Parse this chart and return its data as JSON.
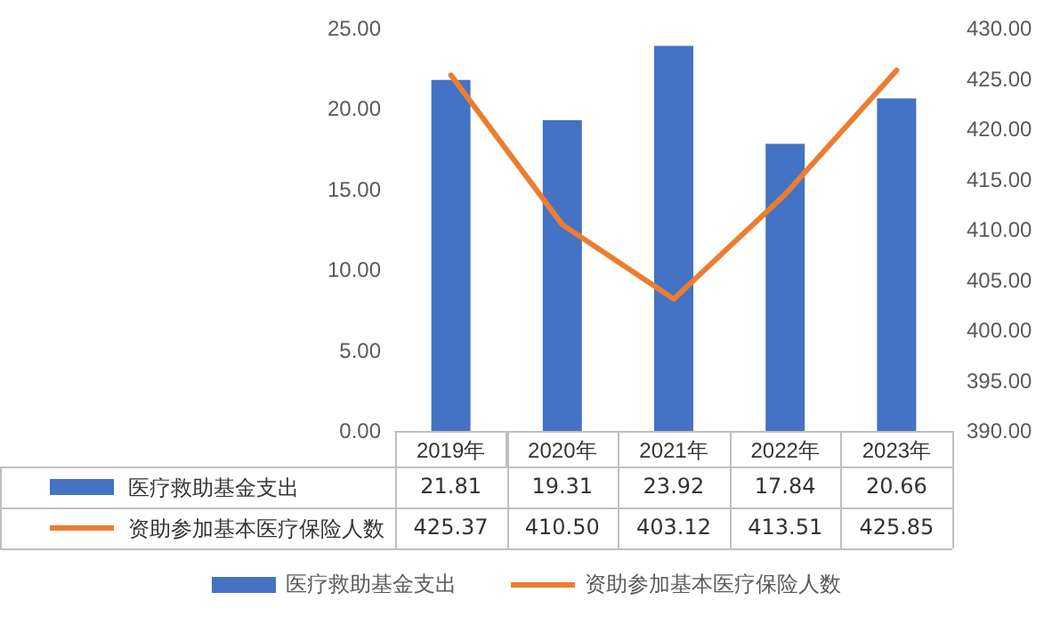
{
  "chart_data": {
    "type": "bar",
    "categories": [
      "2019年",
      "2020年",
      "2021年",
      "2022年",
      "2023年"
    ],
    "series": [
      {
        "name": "医疗救助基金支出",
        "color": "#4472c4",
        "values": [
          21.81,
          19.31,
          23.92,
          17.84,
          20.66
        ],
        "value_labels": [
          "21.81",
          "19.31",
          "23.92",
          "17.84",
          "20.66"
        ]
      },
      {
        "name": "资助参加基本医疗保险人数",
        "type": "line",
        "axis": "y2",
        "color": "#ed7d31",
        "values": [
          425.37,
          410.5,
          403.12,
          413.51,
          425.85
        ],
        "value_labels": [
          "425.37",
          "410.50",
          "403.12",
          "413.51",
          "425.85"
        ]
      }
    ],
    "ylim": [
      0,
      25
    ],
    "yticks": [
      {
        "value": 0,
        "label": "0.00"
      },
      {
        "value": 5,
        "label": "5.00"
      },
      {
        "value": 10,
        "label": "10.00"
      },
      {
        "value": 15,
        "label": "15.00"
      },
      {
        "value": 20,
        "label": "20.00"
      },
      {
        "value": 25,
        "label": "25.00"
      }
    ],
    "y2lim": [
      390,
      430
    ],
    "y2ticks": [
      {
        "value": 390,
        "label": "390.00"
      },
      {
        "value": 395,
        "label": "395.00"
      },
      {
        "value": 400,
        "label": "400.00"
      },
      {
        "value": 405,
        "label": "405.00"
      },
      {
        "value": 410,
        "label": "410.00"
      },
      {
        "value": 415,
        "label": "415.00"
      },
      {
        "value": 420,
        "label": "420.00"
      },
      {
        "value": 425,
        "label": "425.00"
      },
      {
        "value": 430,
        "label": "430.00"
      }
    ],
    "legend": "bottom",
    "marker": "none"
  }
}
